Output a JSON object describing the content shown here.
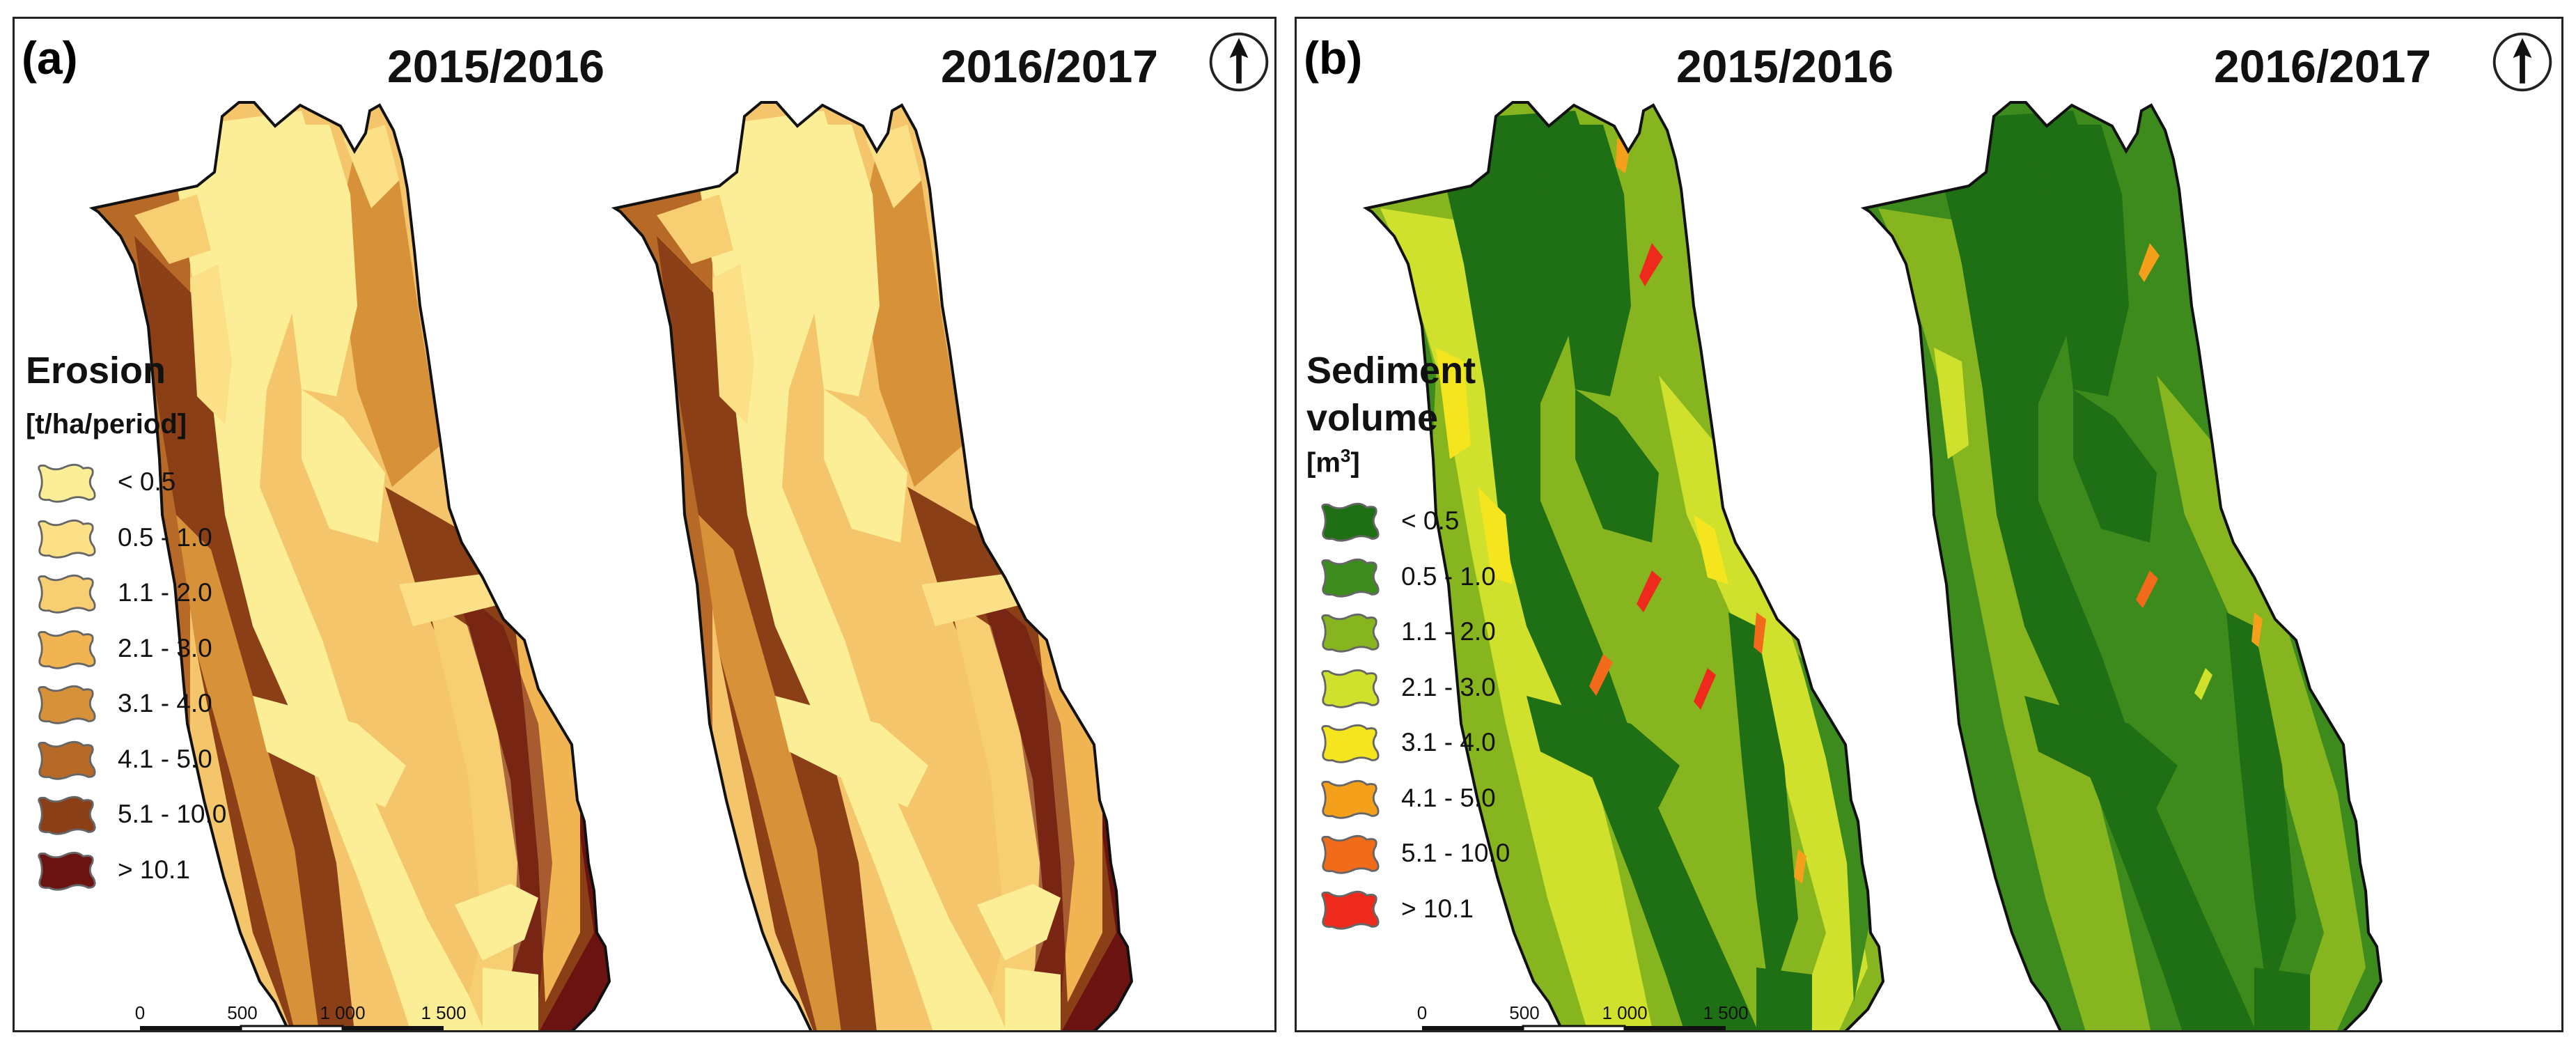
{
  "panels": [
    {
      "label": "(a)",
      "periods": [
        "2015/2016",
        "2016/2017"
      ],
      "legend": {
        "title": "Erosion",
        "unit": "[t/ha/period]",
        "classes": [
          {
            "label": "< 0.5",
            "color": "#fbee96"
          },
          {
            "label": "0.5 - 1.0",
            "color": "#fbe087"
          },
          {
            "label": "1.1 - 2.0",
            "color": "#f7ce71"
          },
          {
            "label": "2.1 - 3.0",
            "color": "#f0b552"
          },
          {
            "label": "3.1 - 4.0",
            "color": "#d79239"
          },
          {
            "label": "4.1 - 5.0",
            "color": "#b76a27"
          },
          {
            "label": "5.1 - 10.0",
            "color": "#8a3f17"
          },
          {
            "label": "> 10.1",
            "color": "#6a1310"
          }
        ]
      },
      "scale_bar": {
        "ticks": [
          "0",
          "500",
          "1 000",
          "1 500"
        ],
        "unit": "m"
      }
    },
    {
      "label": "(b)",
      "periods": [
        "2015/2016",
        "2016/2017"
      ],
      "legend": {
        "title_line1": "Sediment",
        "title_line2": "volume",
        "unit_base": "[m",
        "unit_sup": "3",
        "unit_end": "]",
        "classes": [
          {
            "label": "< 0.5",
            "color": "#1f6f14"
          },
          {
            "label": "0.5 - 1.0",
            "color": "#3d8b1c"
          },
          {
            "label": "1.1 - 2.0",
            "color": "#86b51f"
          },
          {
            "label": "2.1 - 3.0",
            "color": "#cfe12c"
          },
          {
            "label": "3.1 - 4.0",
            "color": "#f5e51f"
          },
          {
            "label": "4.1 - 5.0",
            "color": "#f5a01a"
          },
          {
            "label": "5.1 - 10.0",
            "color": "#f26b1a"
          },
          {
            "label": "> 10.1",
            "color": "#ee2a1c"
          }
        ]
      },
      "scale_bar": {
        "ticks": [
          "0",
          "500",
          "1 000",
          "1 500"
        ],
        "unit": "m"
      }
    }
  ],
  "icons": {
    "north_arrow": "north-arrow-icon"
  }
}
